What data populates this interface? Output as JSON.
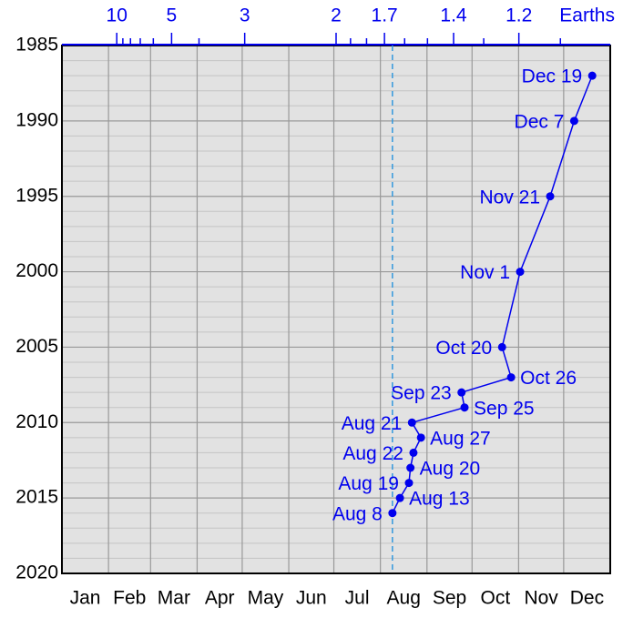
{
  "chart_data": {
    "type": "line",
    "categories": [
      "Jan",
      "Feb",
      "Mar",
      "Apr",
      "May",
      "Jun",
      "Jul",
      "Aug",
      "Sep",
      "Oct",
      "Nov",
      "Dec"
    ],
    "month_bounds": [
      0,
      31,
      59,
      90,
      120,
      151,
      181,
      212,
      243,
      273,
      304,
      334,
      365
    ],
    "xlim": [
      0,
      365
    ],
    "ylim": [
      1985,
      2020
    ],
    "yticks": [
      1985,
      1990,
      1995,
      2000,
      2005,
      2010,
      2015,
      2020
    ],
    "yminor": [
      1986,
      1987,
      1988,
      1989,
      1991,
      1992,
      1993,
      1994,
      1996,
      1997,
      1998,
      1999,
      2001,
      2002,
      2003,
      2004,
      2006,
      2007,
      2008,
      2009,
      2011,
      2012,
      2013,
      2014,
      2016,
      2017,
      2018,
      2019
    ],
    "y_reversed": true,
    "x2_label": "Earths",
    "x2ticks": [
      10,
      5,
      3,
      2,
      1.7,
      1.4,
      1.2
    ],
    "x2minor": [
      9,
      8,
      7,
      6,
      4,
      1.9,
      1.8,
      1.6,
      1.5,
      1.3,
      1.1
    ],
    "reference_day": 220,
    "color": "#0000ee",
    "series": [
      {
        "x": [
          353,
          341,
          325,
          305,
          293,
          299,
          266,
          268,
          233,
          239,
          234,
          232,
          231,
          225,
          220
        ],
        "values": [
          1987,
          1990,
          1995,
          2000,
          2005,
          2007,
          2008,
          2009,
          2010,
          2011,
          2012,
          2013,
          2014,
          2015,
          2016
        ],
        "value_labels": [
          "Dec 19",
          "Dec 7",
          "Nov 21",
          "Nov 1",
          "Oct 20",
          "Oct 26",
          "Sep 23",
          "Sep 25",
          "Aug 21",
          "Aug 27",
          "Aug 22",
          "Aug 20",
          "Aug 19",
          "Aug 13",
          "Aug 8"
        ]
      }
    ]
  }
}
